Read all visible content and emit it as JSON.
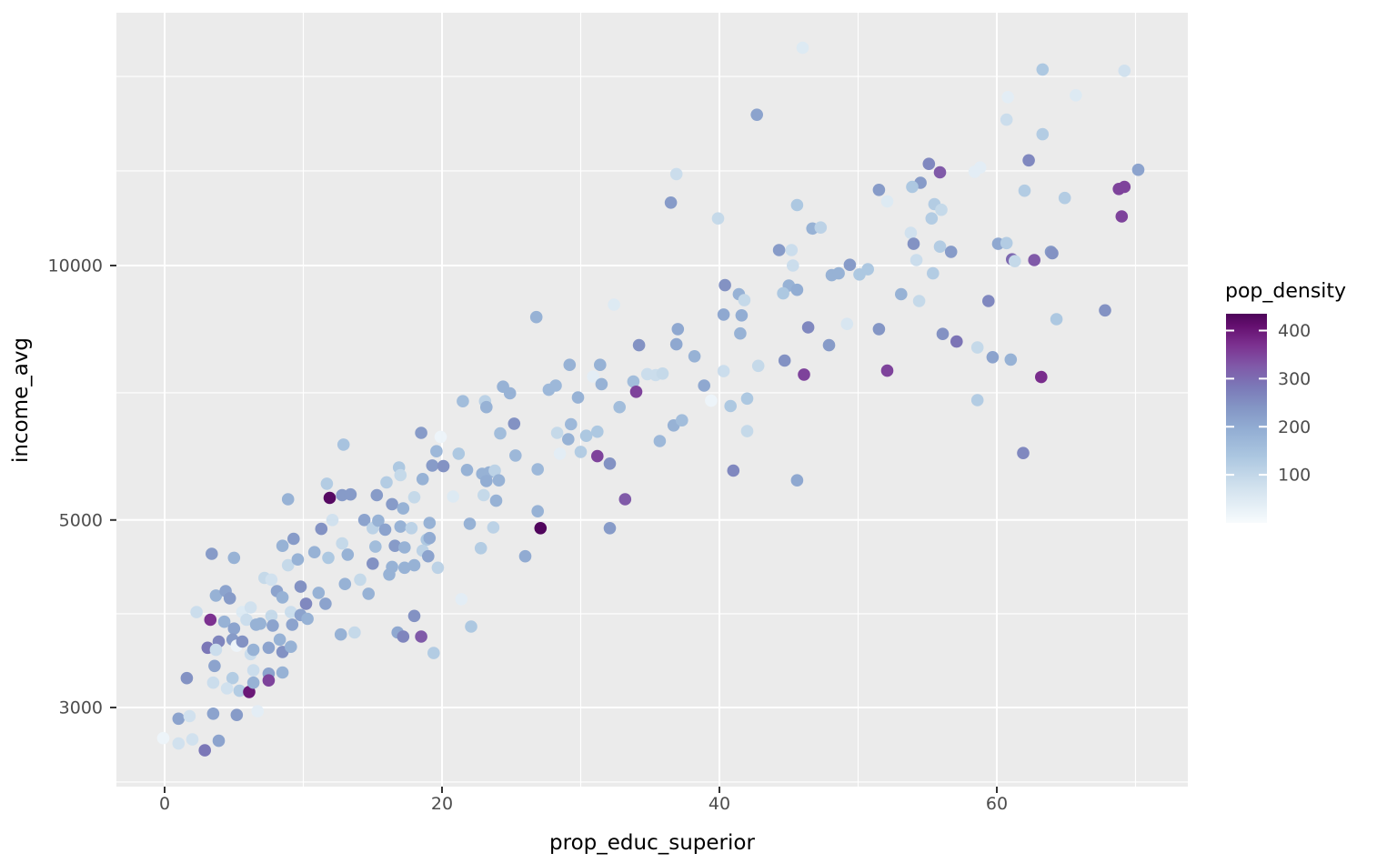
{
  "chart_data": {
    "type": "scatter",
    "title": "",
    "xlabel": "prop_educ_superior",
    "ylabel": "income_avg",
    "x_axis": {
      "ticks": [
        0,
        20,
        40,
        60
      ],
      "minor_breaks": [
        10,
        30,
        50,
        70
      ],
      "range": [
        -3.5,
        73.8
      ]
    },
    "y_axis": {
      "scale": "log10",
      "ticks": [
        3000,
        5000,
        10000
      ],
      "tick_labels": [
        "3000",
        "5000",
        "10000"
      ],
      "minor_breaks": [
        2449,
        3873,
        7071,
        12940,
        16740
      ],
      "range": [
        2400,
        20500
      ]
    },
    "grid": true,
    "legend": {
      "title": "pop_density",
      "ticks": [
        100,
        200,
        300,
        400
      ],
      "position": "right"
    },
    "colors": {
      "panel_bg": "#ebebeb",
      "grid": "#ffffff",
      "tick_mark": "#333333",
      "tick_label": "#4d4d4d",
      "axis_title": "#000000"
    },
    "color_scale": {
      "domain": [
        0,
        435
      ],
      "stops": [
        [
          0,
          "#f7fbfd"
        ],
        [
          0.18,
          "#cfe0ed"
        ],
        [
          0.32,
          "#abc6e0"
        ],
        [
          0.45,
          "#92add3"
        ],
        [
          0.55,
          "#8496c5"
        ],
        [
          0.65,
          "#7b79b8"
        ],
        [
          0.75,
          "#8059a8"
        ],
        [
          0.85,
          "#7c3190"
        ],
        [
          0.94,
          "#651070"
        ],
        [
          1,
          "#4d0459"
        ]
      ]
    },
    "points": [
      [
        3.4,
        4560,
        230
      ],
      [
        5.0,
        4510,
        185
      ],
      [
        8.5,
        4660,
        185
      ],
      [
        9.3,
        4750,
        230
      ],
      [
        11.3,
        4880,
        245
      ],
      [
        12.1,
        5000,
        75
      ],
      [
        12.8,
        4690,
        95
      ],
      [
        13.2,
        4550,
        185
      ],
      [
        14.4,
        5000,
        215
      ],
      [
        15.0,
        4890,
        110
      ],
      [
        15.4,
        4990,
        185
      ],
      [
        15.9,
        4870,
        215
      ],
      [
        8.9,
        4420,
        95
      ],
      [
        9.6,
        4490,
        185
      ],
      [
        10.8,
        4580,
        185
      ],
      [
        11.8,
        4510,
        135
      ],
      [
        13.0,
        4200,
        185
      ],
      [
        14.1,
        4250,
        95
      ],
      [
        14.7,
        4090,
        185
      ],
      [
        9.8,
        4170,
        245
      ],
      [
        11.1,
        4100,
        185
      ],
      [
        3.7,
        4070,
        185
      ],
      [
        4.4,
        4120,
        215
      ],
      [
        4.7,
        4040,
        230
      ],
      [
        5.6,
        3890,
        50
      ],
      [
        6.2,
        3940,
        75
      ],
      [
        7.2,
        4270,
        95
      ],
      [
        7.7,
        4250,
        75
      ],
      [
        8.1,
        4120,
        215
      ],
      [
        8.5,
        4050,
        185
      ],
      [
        2.3,
        3890,
        85
      ],
      [
        3.3,
        3810,
        370
      ],
      [
        4.3,
        3790,
        185
      ],
      [
        5.0,
        3720,
        215
      ],
      [
        5.9,
        3810,
        85
      ],
      [
        6.6,
        3760,
        185
      ],
      [
        6.9,
        3770,
        185
      ],
      [
        7.7,
        3850,
        95
      ],
      [
        7.8,
        3750,
        215
      ],
      [
        8.3,
        3610,
        185
      ],
      [
        9.1,
        3890,
        85
      ],
      [
        9.2,
        3760,
        215
      ],
      [
        9.8,
        3860,
        215
      ],
      [
        10.2,
        3980,
        260
      ],
      [
        10.3,
        3820,
        185
      ],
      [
        11.6,
        3980,
        215
      ],
      [
        12.7,
        3660,
        185
      ],
      [
        13.7,
        3680,
        95
      ],
      [
        3.9,
        3590,
        265
      ],
      [
        4.9,
        3610,
        230
      ],
      [
        5.2,
        3550,
        20
      ],
      [
        5.6,
        3590,
        245
      ],
      [
        3.1,
        3530,
        285
      ],
      [
        3.7,
        3510,
        85
      ],
      [
        6.2,
        3470,
        85
      ],
      [
        6.4,
        3510,
        185
      ],
      [
        7.5,
        3530,
        215
      ],
      [
        8.5,
        3490,
        245
      ],
      [
        9.1,
        3540,
        185
      ],
      [
        3.6,
        3360,
        215
      ],
      [
        1.6,
        3250,
        245
      ],
      [
        3.5,
        3210,
        85
      ],
      [
        4.9,
        3250,
        125
      ],
      [
        6.4,
        3320,
        85
      ],
      [
        7.5,
        3290,
        215
      ],
      [
        7.5,
        3230,
        350
      ],
      [
        8.5,
        3300,
        185
      ],
      [
        4.5,
        3160,
        75
      ],
      [
        5.4,
        3140,
        125
      ],
      [
        6.1,
        3130,
        400
      ],
      [
        6.4,
        3210,
        185
      ],
      [
        1.0,
        2910,
        215
      ],
      [
        1.8,
        2930,
        75
      ],
      [
        3.5,
        2950,
        215
      ],
      [
        5.2,
        2940,
        230
      ],
      [
        6.7,
        2970,
        40
      ],
      [
        -0.1,
        2760,
        20
      ],
      [
        1.0,
        2720,
        75
      ],
      [
        2.0,
        2750,
        75
      ],
      [
        2.9,
        2670,
        285
      ],
      [
        3.9,
        2740,
        215
      ],
      [
        12.9,
        6140,
        145
      ],
      [
        11.7,
        5520,
        125
      ],
      [
        12.8,
        5350,
        230
      ],
      [
        13.4,
        5360,
        230
      ],
      [
        11.9,
        5310,
        425
      ],
      [
        8.9,
        5290,
        185
      ],
      [
        15.3,
        5350,
        230
      ],
      [
        16.0,
        5540,
        125
      ],
      [
        26.8,
        8690,
        185
      ],
      [
        32.4,
        8990,
        50
      ],
      [
        34.2,
        8050,
        245
      ],
      [
        29.2,
        7630,
        185
      ],
      [
        31.4,
        7630,
        185
      ],
      [
        30.9,
        7390,
        40
      ],
      [
        31.5,
        7240,
        185
      ],
      [
        34.8,
        7440,
        85
      ],
      [
        35.4,
        7420,
        85
      ],
      [
        33.8,
        7290,
        160
      ],
      [
        34.0,
        7090,
        350
      ],
      [
        24.4,
        7190,
        185
      ],
      [
        24.9,
        7060,
        185
      ],
      [
        27.7,
        7130,
        170
      ],
      [
        28.2,
        7210,
        170
      ],
      [
        29.8,
        6980,
        185
      ],
      [
        21.5,
        6910,
        160
      ],
      [
        23.1,
        6910,
        110
      ],
      [
        23.2,
        6800,
        185
      ],
      [
        32.8,
        6800,
        160
      ],
      [
        25.2,
        6500,
        245
      ],
      [
        29.3,
        6490,
        170
      ],
      [
        18.5,
        6340,
        230
      ],
      [
        19.9,
        6270,
        20
      ],
      [
        24.2,
        6330,
        160
      ],
      [
        28.3,
        6340,
        95
      ],
      [
        29.1,
        6230,
        185
      ],
      [
        30.4,
        6290,
        135
      ],
      [
        31.2,
        6360,
        135
      ],
      [
        35.7,
        6200,
        170
      ],
      [
        19.6,
        6030,
        170
      ],
      [
        21.2,
        5990,
        135
      ],
      [
        25.3,
        5960,
        170
      ],
      [
        28.5,
        5990,
        40
      ],
      [
        30.0,
        6020,
        125
      ],
      [
        31.2,
        5950,
        350
      ],
      [
        32.1,
        5830,
        245
      ],
      [
        19.3,
        5800,
        230
      ],
      [
        20.1,
        5790,
        245
      ],
      [
        21.8,
        5730,
        185
      ],
      [
        16.9,
        5770,
        135
      ],
      [
        17.0,
        5650,
        95
      ],
      [
        18.6,
        5590,
        185
      ],
      [
        22.9,
        5670,
        185
      ],
      [
        23.4,
        5690,
        185
      ],
      [
        23.8,
        5720,
        110
      ],
      [
        23.2,
        5560,
        195
      ],
      [
        24.1,
        5570,
        185
      ],
      [
        26.9,
        5740,
        170
      ],
      [
        18.0,
        5320,
        95
      ],
      [
        20.8,
        5330,
        50
      ],
      [
        23.0,
        5350,
        95
      ],
      [
        23.9,
        5270,
        185
      ],
      [
        16.4,
        5220,
        230
      ],
      [
        17.2,
        5160,
        185
      ],
      [
        26.9,
        5120,
        185
      ],
      [
        27.1,
        4890,
        432
      ],
      [
        32.1,
        4890,
        230
      ],
      [
        22.0,
        4950,
        185
      ],
      [
        23.7,
        4900,
        110
      ],
      [
        33.2,
        5290,
        325
      ],
      [
        19.1,
        4960,
        185
      ],
      [
        17.0,
        4910,
        185
      ],
      [
        17.8,
        4890,
        110
      ],
      [
        22.8,
        4630,
        125
      ],
      [
        26.0,
        4530,
        200
      ],
      [
        16.6,
        4660,
        230
      ],
      [
        18.9,
        4740,
        135
      ],
      [
        18.6,
        4600,
        110
      ],
      [
        17.3,
        4640,
        185
      ],
      [
        19.0,
        4530,
        215
      ],
      [
        16.4,
        4400,
        185
      ],
      [
        17.3,
        4390,
        185
      ],
      [
        18.0,
        4420,
        185
      ],
      [
        19.7,
        4390,
        110
      ],
      [
        16.2,
        4310,
        185
      ],
      [
        21.4,
        4030,
        40
      ],
      [
        18.0,
        3850,
        245
      ],
      [
        22.1,
        3740,
        135
      ],
      [
        16.8,
        3680,
        205
      ],
      [
        17.2,
        3640,
        265
      ],
      [
        18.5,
        3640,
        325
      ],
      [
        19.4,
        3480,
        125
      ],
      [
        15.2,
        4650,
        160
      ],
      [
        15.0,
        4440,
        245
      ],
      [
        19.1,
        4760,
        200
      ],
      [
        42.7,
        15080,
        215
      ],
      [
        36.9,
        12830,
        85
      ],
      [
        36.5,
        11870,
        230
      ],
      [
        39.9,
        11370,
        95
      ],
      [
        44.3,
        10430,
        230
      ],
      [
        46.0,
        18100,
        50
      ],
      [
        63.3,
        17060,
        135
      ],
      [
        60.8,
        15820,
        40
      ],
      [
        60.7,
        14880,
        85
      ],
      [
        63.3,
        14300,
        125
      ],
      [
        62.3,
        13320,
        260
      ],
      [
        55.1,
        13190,
        260
      ],
      [
        55.9,
        12890,
        325
      ],
      [
        58.8,
        13060,
        40
      ],
      [
        58.4,
        12910,
        40
      ],
      [
        54.5,
        12530,
        230
      ],
      [
        53.9,
        12390,
        135
      ],
      [
        51.5,
        12290,
        230
      ],
      [
        52.1,
        11910,
        50
      ],
      [
        62.0,
        12260,
        125
      ],
      [
        45.6,
        11790,
        135
      ],
      [
        55.5,
        11820,
        125
      ],
      [
        56.0,
        11640,
        95
      ],
      [
        55.3,
        11370,
        125
      ],
      [
        46.7,
        11060,
        185
      ],
      [
        47.3,
        11090,
        110
      ],
      [
        53.8,
        10930,
        75
      ],
      [
        54.0,
        10610,
        245
      ],
      [
        55.9,
        10530,
        125
      ],
      [
        56.7,
        10380,
        230
      ],
      [
        54.2,
        10150,
        85
      ],
      [
        60.1,
        10610,
        205
      ],
      [
        60.7,
        10630,
        125
      ],
      [
        61.1,
        10170,
        305
      ],
      [
        61.3,
        10120,
        95
      ],
      [
        62.7,
        10150,
        325
      ],
      [
        63.9,
        10380,
        230
      ],
      [
        45.2,
        10430,
        85
      ],
      [
        45.3,
        10000,
        85
      ],
      [
        49.4,
        10020,
        230
      ],
      [
        48.1,
        9740,
        185
      ],
      [
        48.6,
        9790,
        185
      ],
      [
        50.1,
        9760,
        135
      ],
      [
        50.7,
        9900,
        135
      ],
      [
        55.4,
        9790,
        125
      ],
      [
        45.0,
        9470,
        185
      ],
      [
        69.2,
        17000,
        75
      ],
      [
        65.7,
        15900,
        50
      ],
      [
        70.2,
        12980,
        215
      ],
      [
        68.8,
        12320,
        350
      ],
      [
        69.2,
        12390,
        350
      ],
      [
        64.9,
        12020,
        125
      ],
      [
        69.0,
        11430,
        350
      ],
      [
        64.0,
        10340,
        245
      ],
      [
        40.4,
        9480,
        245
      ],
      [
        41.4,
        9250,
        185
      ],
      [
        41.8,
        9100,
        95
      ],
      [
        44.6,
        9270,
        135
      ],
      [
        45.6,
        9360,
        195
      ],
      [
        53.1,
        9250,
        185
      ],
      [
        54.4,
        9080,
        95
      ],
      [
        40.3,
        8750,
        205
      ],
      [
        41.6,
        8730,
        195
      ],
      [
        46.4,
        8450,
        260
      ],
      [
        49.2,
        8530,
        60
      ],
      [
        51.5,
        8410,
        240
      ],
      [
        41.5,
        8310,
        185
      ],
      [
        37.0,
        8410,
        205
      ],
      [
        36.9,
        8070,
        205
      ],
      [
        38.2,
        7810,
        185
      ],
      [
        47.9,
        8050,
        230
      ],
      [
        44.7,
        7720,
        245
      ],
      [
        42.8,
        7610,
        95
      ],
      [
        40.3,
        7500,
        85
      ],
      [
        35.9,
        7450,
        95
      ],
      [
        46.1,
        7430,
        350
      ],
      [
        52.1,
        7510,
        350
      ],
      [
        38.9,
        7210,
        205
      ],
      [
        39.4,
        6920,
        20
      ],
      [
        42.0,
        6960,
        135
      ],
      [
        40.8,
        6820,
        135
      ],
      [
        36.7,
        6470,
        185
      ],
      [
        37.3,
        6560,
        160
      ],
      [
        42.0,
        6370,
        95
      ],
      [
        41.0,
        5720,
        260
      ],
      [
        45.6,
        5570,
        205
      ],
      [
        59.4,
        9080,
        260
      ],
      [
        67.8,
        8850,
        245
      ],
      [
        64.3,
        8640,
        135
      ],
      [
        56.1,
        8300,
        245
      ],
      [
        57.1,
        8130,
        290
      ],
      [
        58.6,
        8000,
        95
      ],
      [
        59.7,
        7790,
        215
      ],
      [
        61.0,
        7740,
        185
      ],
      [
        63.2,
        7380,
        375
      ],
      [
        58.6,
        6930,
        125
      ],
      [
        61.9,
        6000,
        260
      ]
    ]
  }
}
